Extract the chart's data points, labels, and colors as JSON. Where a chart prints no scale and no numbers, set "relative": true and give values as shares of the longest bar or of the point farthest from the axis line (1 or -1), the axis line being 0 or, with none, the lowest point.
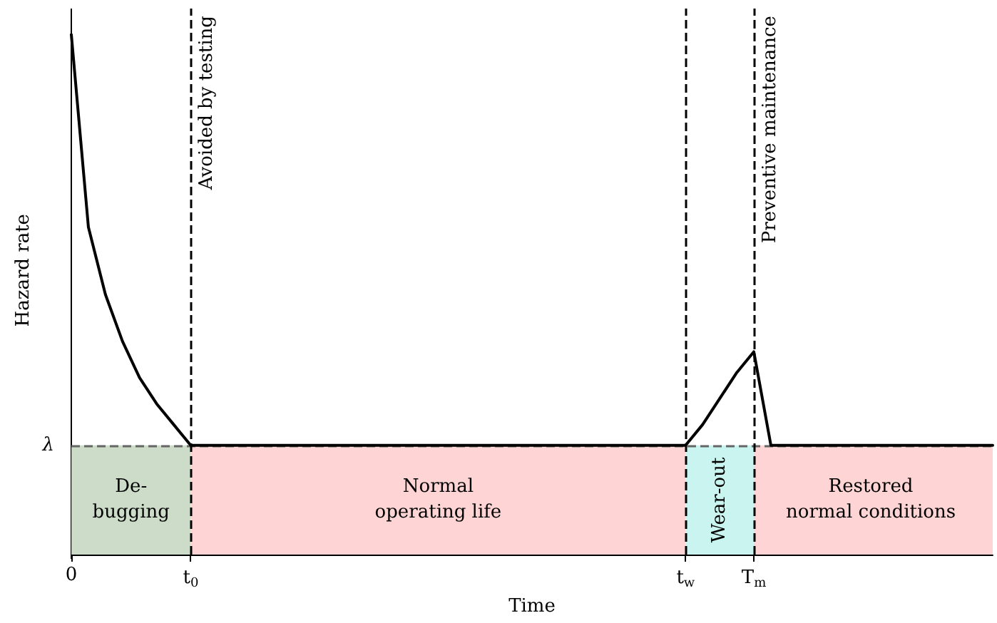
{
  "chart_data": {
    "type": "line",
    "relative": true,
    "xlabel": "Time",
    "ylabel": "Hazard rate",
    "categories": [
      "0",
      null,
      null,
      null,
      null,
      null,
      null,
      "t$_{0}$",
      null,
      null,
      null,
      null,
      null,
      null,
      null,
      null,
      null,
      null,
      null,
      null,
      null,
      null,
      null,
      null,
      null,
      null,
      null,
      null,
      null,
      null,
      null,
      null,
      null,
      null,
      null,
      null,
      "t$_{w}$",
      null,
      null,
      null,
      "T$_{m}$",
      null,
      null,
      null,
      null,
      null,
      null,
      null,
      null,
      null,
      null,
      null,
      null,
      null,
      null
    ],
    "series": [
      {
        "color": "#000000",
        "values": [
          1,
          0.63,
          0.5,
          0.41,
          0.34,
          0.29,
          0.25,
          0.21,
          0.21,
          0.21,
          0.21,
          0.21,
          0.21,
          0.21,
          0.21,
          0.21,
          0.21,
          0.21,
          0.21,
          0.21,
          0.21,
          0.21,
          0.21,
          0.21,
          0.21,
          0.21,
          0.21,
          0.21,
          0.21,
          0.21,
          0.21,
          0.21,
          0.21,
          0.21,
          0.21,
          0.21,
          0.21,
          0.25,
          0.3,
          0.35,
          0.39,
          0.21,
          0.21,
          0.21,
          0.21,
          0.21,
          0.21,
          0.21,
          0.21,
          0.21,
          0.21,
          0.21,
          0.21,
          0.21,
          0.21
        ]
      },
      {
        "type": "area",
        "color": "#ffcccc",
        "values": [
          null,
          null,
          null,
          null,
          null,
          null,
          null,
          null,
          null,
          null,
          null,
          null,
          null,
          null,
          null,
          null,
          null,
          null,
          null,
          null,
          null,
          null,
          null,
          null,
          null,
          null,
          null,
          null,
          null,
          null,
          null,
          null,
          null,
          null,
          null,
          null,
          null,
          null,
          null,
          null,
          0.21,
          0.21,
          0.21,
          0.21,
          0.21,
          0.21,
          0.21,
          0.21,
          0.21,
          0.21,
          0.21,
          0.21,
          0.21,
          0.21,
          0.21
        ]
      }
    ],
    "annotations": [
      {
        "text": "Restored normal conditions",
        "x": "T$_{m}$",
        "y": 0.105
      }
    ],
    "ref_lines": [
      {
        "axis": "y",
        "value": 0.21,
        "label": "λ",
        "line_style": "dashed",
        "color": "#666666"
      },
      {
        "axis": "x",
        "value": "t$_{0}$",
        "label": "Avoided by testing",
        "line_style": "dashed",
        "color": "#000000"
      },
      {
        "axis": "x",
        "value": "t$_{w}$",
        "line_style": "dashed",
        "color": "#000000"
      },
      {
        "axis": "x",
        "value": "T$_{m}$",
        "label": "Preventive maintenance",
        "line_style": "dashed",
        "color": "#000000"
      }
    ],
    "bands": [
      {
        "axis": "x",
        "from": "0",
        "to": "t$_{0}$",
        "label": "De-bugging",
        "color": "#c3d6bf"
      },
      {
        "axis": "x",
        "from": "t$_{0}$",
        "to": "t$_{w}$",
        "label": "Normal operating life",
        "color": "#ffcccc"
      },
      {
        "axis": "x",
        "from": "t$_{w}$",
        "to": "T$_{m}$",
        "label": "Wear-out",
        "color": "#bff2ec"
      }
    ],
    "line_style": "solid"
  }
}
